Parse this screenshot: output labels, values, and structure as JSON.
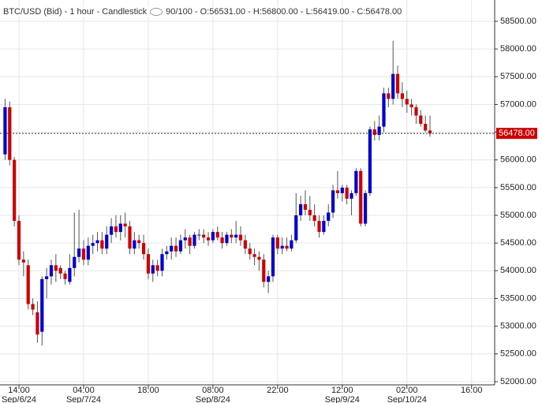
{
  "chart_data": {
    "type": "candlestick",
    "title": "BTC/USD (Bid) - 1 hour - Candlestick",
    "bar_count": "90/100",
    "ohlc_labels": [
      "O:56531.00",
      "H:56800.00",
      "L:56419.00",
      "C:56478.00"
    ],
    "up_color": "#0000cc",
    "down_color": "#cc0000",
    "grid": true,
    "last_price": {
      "value": 56478,
      "label": "56478.00"
    },
    "ylim": [
      51942,
      58884
    ],
    "yticks": [
      {
        "value": 52000,
        "label": "52000.00"
      },
      {
        "value": 52500,
        "label": "52500.00"
      },
      {
        "value": 53000,
        "label": "53000.00"
      },
      {
        "value": 53500,
        "label": "53500.00"
      },
      {
        "value": 54000,
        "label": "54000.00"
      },
      {
        "value": 54500,
        "label": "54500.00"
      },
      {
        "value": 55000,
        "label": "55000.00"
      },
      {
        "value": 55500,
        "label": "55500.00"
      },
      {
        "value": 56000,
        "label": "56000.00"
      },
      {
        "value": 56500,
        "label": "56500.00"
      },
      {
        "value": 57000,
        "label": "57000.00"
      },
      {
        "value": 57500,
        "label": "57500.00"
      },
      {
        "value": 58000,
        "label": "58000.00"
      },
      {
        "value": 58500,
        "label": "58500.00"
      }
    ],
    "xlim": [
      -4.1,
      103
    ],
    "xticks": [
      {
        "value": 0,
        "label": "14:00"
      },
      {
        "value": 14,
        "label": "04:00"
      },
      {
        "value": 28,
        "label": "18:00"
      },
      {
        "value": 42,
        "label": "08:00"
      },
      {
        "value": 56,
        "label": "22:00"
      },
      {
        "value": 70,
        "label": "12:00"
      },
      {
        "value": 84,
        "label": "02:00"
      },
      {
        "value": 98,
        "label": "16:00"
      }
    ],
    "xtick_dates": [
      "Sep/6/24",
      "Sep/7/24",
      null,
      "Sep/8/24",
      null,
      "Sep/9/24",
      "Sep/10/24",
      null
    ],
    "x": [
      -3,
      -2,
      -1,
      0,
      1,
      2,
      3,
      4,
      5,
      6,
      7,
      8,
      9,
      10,
      11,
      12,
      13,
      14,
      15,
      16,
      17,
      18,
      19,
      20,
      21,
      22,
      23,
      24,
      25,
      26,
      27,
      28,
      29,
      30,
      31,
      32,
      33,
      34,
      35,
      36,
      37,
      38,
      39,
      40,
      41,
      42,
      43,
      44,
      45,
      46,
      47,
      48,
      49,
      50,
      51,
      52,
      53,
      54,
      55,
      56,
      57,
      58,
      59,
      60,
      61,
      62,
      63,
      64,
      65,
      66,
      67,
      68,
      69,
      70,
      71,
      72,
      73,
      74,
      75,
      76,
      77,
      78,
      79,
      80,
      81,
      82,
      83,
      84,
      85,
      86,
      87,
      88,
      89
    ],
    "ohlc": [
      [
        56100,
        57100,
        56000,
        56950
      ],
      [
        56950,
        57050,
        55900,
        56000
      ],
      [
        56000,
        56050,
        54800,
        54900
      ],
      [
        54900,
        55000,
        54100,
        54200
      ],
      [
        54200,
        54350,
        53900,
        54150
      ],
      [
        54100,
        54200,
        53300,
        53400
      ],
      [
        53400,
        53500,
        53200,
        53300
      ],
      [
        53250,
        53450,
        52700,
        52850
      ],
      [
        52900,
        53900,
        52650,
        53850
      ],
      [
        53850,
        54050,
        53500,
        53900
      ],
      [
        53900,
        54200,
        53750,
        54100
      ],
      [
        54100,
        54300,
        53800,
        54000
      ],
      [
        54050,
        54100,
        53850,
        53950
      ],
      [
        53950,
        54000,
        53750,
        53850
      ],
      [
        53800,
        54300,
        53750,
        54050
      ],
      [
        54050,
        55050,
        53900,
        54250
      ],
      [
        54250,
        55100,
        54150,
        54400
      ],
      [
        54400,
        54550,
        54100,
        54200
      ],
      [
        54200,
        54600,
        54100,
        54450
      ],
      [
        54450,
        54650,
        54300,
        54500
      ],
      [
        54500,
        54700,
        54350,
        54550
      ],
      [
        54550,
        54700,
        54300,
        54400
      ],
      [
        54400,
        54800,
        54300,
        54650
      ],
      [
        54650,
        54950,
        54500,
        54800
      ],
      [
        54800,
        55000,
        54600,
        54700
      ],
      [
        54700,
        55000,
        54550,
        54850
      ],
      [
        54850,
        55050,
        54600,
        54800
      ],
      [
        54800,
        54900,
        54300,
        54400
      ],
      [
        54400,
        54700,
        54300,
        54550
      ],
      [
        54550,
        54650,
        54400,
        54500
      ],
      [
        54500,
        54650,
        54200,
        54300
      ],
      [
        54300,
        54400,
        53850,
        53950
      ],
      [
        53950,
        54200,
        53800,
        54100
      ],
      [
        54100,
        54200,
        53900,
        54000
      ],
      [
        54000,
        54400,
        53900,
        54300
      ],
      [
        54300,
        54450,
        54200,
        54350
      ],
      [
        54350,
        54600,
        54200,
        54450
      ],
      [
        54450,
        54600,
        54250,
        54350
      ],
      [
        54350,
        54650,
        54300,
        54550
      ],
      [
        54550,
        54750,
        54400,
        54600
      ],
      [
        54600,
        54650,
        54300,
        54450
      ],
      [
        54450,
        54700,
        54400,
        54650
      ],
      [
        54650,
        54750,
        54550,
        54650
      ],
      [
        54650,
        54750,
        54500,
        54600
      ],
      [
        54600,
        54700,
        54450,
        54550
      ],
      [
        54550,
        54750,
        54500,
        54700
      ],
      [
        54700,
        54800,
        54550,
        54600
      ],
      [
        54600,
        54700,
        54400,
        54500
      ],
      [
        54500,
        54700,
        54450,
        54650
      ],
      [
        54650,
        54750,
        54500,
        54600
      ],
      [
        54600,
        54900,
        54500,
        54650
      ],
      [
        54650,
        54800,
        54450,
        54550
      ],
      [
        54550,
        54650,
        54300,
        54400
      ],
      [
        54400,
        54500,
        54200,
        54300
      ],
      [
        54300,
        54400,
        54100,
        54250
      ],
      [
        54250,
        54350,
        54000,
        54200
      ],
      [
        54200,
        54300,
        53700,
        53800
      ],
      [
        53800,
        54000,
        53600,
        53900
      ],
      [
        53900,
        54650,
        53800,
        54600
      ],
      [
        54600,
        54650,
        54300,
        54400
      ],
      [
        54400,
        54600,
        54300,
        54450
      ],
      [
        54450,
        54600,
        54350,
        54400
      ],
      [
        54400,
        54650,
        54350,
        54550
      ],
      [
        54550,
        55400,
        54500,
        55000
      ],
      [
        55000,
        55350,
        54900,
        55200
      ],
      [
        55200,
        55450,
        55000,
        55100
      ],
      [
        55100,
        55350,
        54900,
        55000
      ],
      [
        55000,
        55200,
        54800,
        54900
      ],
      [
        54900,
        55000,
        54600,
        54700
      ],
      [
        54700,
        55000,
        54650,
        54900
      ],
      [
        54900,
        55200,
        54800,
        55050
      ],
      [
        55050,
        55550,
        54950,
        55450
      ],
      [
        55450,
        55800,
        55300,
        55400
      ],
      [
        55400,
        55550,
        55250,
        55500
      ],
      [
        55500,
        55550,
        55200,
        55300
      ],
      [
        55300,
        55450,
        55000,
        55400
      ],
      [
        55400,
        55850,
        55350,
        55800
      ],
      [
        55800,
        55850,
        54800,
        54850
      ],
      [
        54850,
        55450,
        54800,
        55400
      ],
      [
        55400,
        56600,
        55350,
        56550
      ],
      [
        56550,
        56700,
        56350,
        56450
      ],
      [
        56450,
        56800,
        56350,
        56600
      ],
      [
        56600,
        57300,
        56500,
        57200
      ],
      [
        57200,
        57300,
        56950,
        57100
      ],
      [
        57100,
        58150,
        57000,
        57550
      ],
      [
        57550,
        57700,
        57100,
        57200
      ],
      [
        57200,
        57400,
        56950,
        57100
      ],
      [
        57100,
        57250,
        56850,
        57000
      ],
      [
        57000,
        57100,
        56800,
        56950
      ],
      [
        56950,
        57000,
        56650,
        56800
      ],
      [
        56800,
        56900,
        56600,
        56650
      ],
      [
        56650,
        56800,
        56500,
        56531
      ],
      [
        56531,
        56800,
        56419,
        56478
      ]
    ]
  }
}
